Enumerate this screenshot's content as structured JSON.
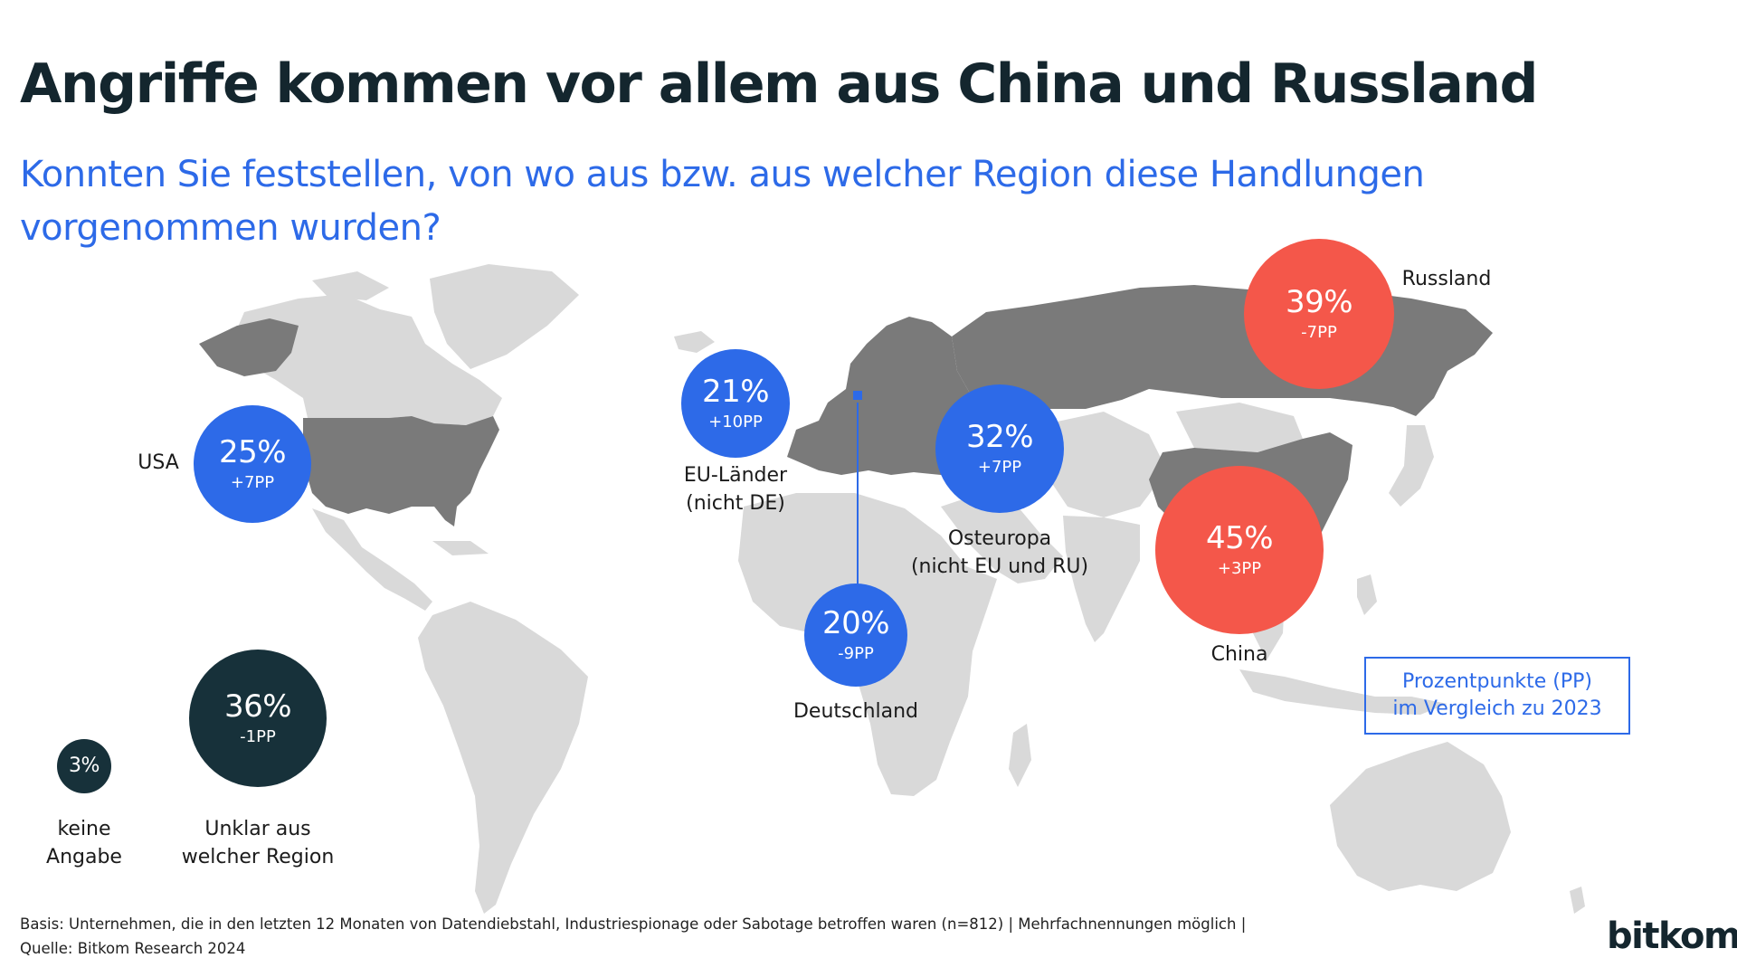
{
  "title": "Angriffe kommen vor allem aus China und Russland",
  "subtitle": "Konnten Sie feststellen, von wo aus bzw. aus welcher Region diese Handlungen vorgenommen wurden?",
  "colors": {
    "eu_us_de": "#2d6ae8",
    "ru_cn": "#f4574a",
    "unknown": "#17313a",
    "highlight_land": "#7a7a7a",
    "other_land": "#d9d9d9"
  },
  "chart_data": {
    "type": "bubble-map",
    "unit": "%",
    "comparison": "Prozentpunkte (PP) im Vergleich zu 2023",
    "regions": [
      {
        "name": "USA",
        "value": 25,
        "pct_label": "25%",
        "change_label": "+7PP"
      },
      {
        "name": "EU-Länder (nicht DE)",
        "value": 21,
        "pct_label": "21%",
        "change_label": "+10PP"
      },
      {
        "name": "Deutschland",
        "value": 20,
        "pct_label": "20%",
        "change_label": "-9PP"
      },
      {
        "name": "Osteuropa (nicht EU und RU)",
        "value": 32,
        "pct_label": "32%",
        "change_label": "+7PP"
      },
      {
        "name": "Russland",
        "value": 39,
        "pct_label": "39%",
        "change_label": "-7PP"
      },
      {
        "name": "China",
        "value": 45,
        "pct_label": "45%",
        "change_label": "+3PP"
      },
      {
        "name": "Unklar aus welcher Region",
        "value": 36,
        "pct_label": "36%",
        "change_label": "-1PP"
      },
      {
        "name": "keine Angabe",
        "value": 3,
        "pct_label": "3%",
        "change_label": ""
      }
    ]
  },
  "labels": {
    "usa": "USA",
    "eu_line1": "EU-Länder",
    "eu_line2": "(nicht DE)",
    "de": "Deutschland",
    "oe_line1": "Osteuropa",
    "oe_line2": "(nicht EU und RU)",
    "ru": "Russland",
    "cn": "China",
    "unknown_line1": "Unklar aus",
    "unknown_line2": "welcher Region",
    "noinfo_line1": "keine",
    "noinfo_line2": "Angabe"
  },
  "legend": {
    "line1": "Prozentpunkte (PP)",
    "line2": "im Vergleich zu 2023"
  },
  "footnote": {
    "line1": "Basis: Unternehmen, die in den letzten 12 Monaten von Datendiebstahl, Industriespionage oder Sabotage betroffen waren (n=812) | Mehrfachnennungen möglich |",
    "line2": "Quelle: Bitkom Research 2024"
  },
  "logo": "bitkom"
}
